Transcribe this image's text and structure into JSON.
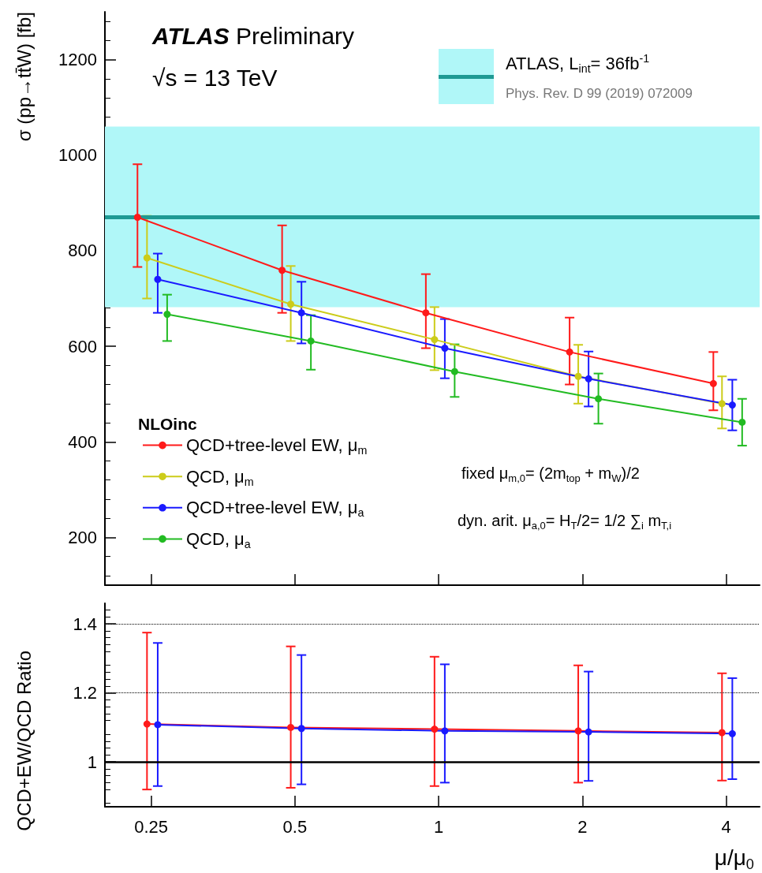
{
  "chart_data": [
    {
      "type": "line",
      "ylabel": "σ (pp→tt̄W) [fb]",
      "legend_title": "NLOinc",
      "log": "x",
      "xlim": [
        0.2,
        4.7
      ],
      "xticks": [
        0.25,
        0.5,
        1,
        2,
        4
      ],
      "ylim": [
        100,
        1300
      ],
      "yticks": [
        200,
        400,
        600,
        800,
        1000,
        1200
      ],
      "tick_labels": "y",
      "marker": "circle",
      "legend": "bottom left",
      "annotations": [
        "ATLAS Preliminary",
        "√s = 13 TeV",
        "ATLAS, L$_{int}$= 36fb$^{-1}$",
        "Phys. Rev. D 99 (2019) 072009",
        "fixed μ$_{m,0}$= (2m$_{top}$ + m$_{W}$)/2",
        "dyn. arit. μ$_{a,0}$= H$_{T}$/2= 1/2 ∑$_{i}$ m$_{T,i}$"
      ],
      "ref_lines": [
        {
          "axis": "y",
          "value": 870,
          "color": "#1f9a94",
          "line_style": "solid"
        }
      ],
      "bands": [
        {
          "axis": "y",
          "from": 682,
          "to": 1060,
          "color": "#b0f7f8"
        }
      ],
      "series": [
        {
          "name": "QCD+tree-level EW, μ$_{m}$",
          "color": "#ff1a1a",
          "x": [
            0.234,
            0.47,
            0.94,
            1.88,
            3.76
          ],
          "values": [
            870,
            759,
            670,
            588,
            522
          ],
          "errors": [
            [
              766,
              981
            ],
            [
              670,
              853
            ],
            [
              596,
              751
            ],
            [
              520,
              660
            ],
            [
              466,
              588
            ]
          ]
        },
        {
          "name": "QCD, μ$_{m}$",
          "color": "#cccc1a",
          "x": [
            0.245,
            0.49,
            0.98,
            1.96,
            3.92
          ],
          "values": [
            785,
            688,
            614,
            537,
            480
          ],
          "errors": [
            [
              700,
              873
            ],
            [
              611,
              768
            ],
            [
              550,
              682
            ],
            [
              480,
              603
            ],
            [
              428,
              537
            ]
          ]
        },
        {
          "name": "QCD+tree-level EW, μ$_{a}$",
          "color": "#1a1aff",
          "x": [
            0.258,
            0.516,
            1.03,
            2.06,
            4.12
          ],
          "values": [
            740,
            670,
            596,
            532,
            477
          ],
          "errors": [
            [
              670,
              794
            ],
            [
              606,
              735
            ],
            [
              533,
              657
            ],
            [
              474,
              589
            ],
            [
              424,
              530
            ]
          ]
        },
        {
          "name": "QCD, μ$_{a}$",
          "color": "#22bb22",
          "x": [
            0.27,
            0.54,
            1.08,
            2.16,
            4.32
          ],
          "values": [
            667,
            611,
            547,
            490,
            441
          ],
          "errors": [
            [
              611,
              708
            ],
            [
              551,
              665
            ],
            [
              494,
              604
            ],
            [
              438,
              543
            ],
            [
              392,
              490
            ]
          ]
        }
      ]
    },
    {
      "type": "line",
      "xlabel": "μ/μ$_{0}$",
      "ylabel": "QCD+EW/QCD Ratio",
      "log": "x",
      "xlim": [
        0.2,
        4.7
      ],
      "xticks": [
        0.25,
        0.5,
        1,
        2,
        4
      ],
      "ylim": [
        0.87,
        1.46
      ],
      "yticks": [
        1,
        1.2,
        1.4
      ],
      "marker": "circle",
      "ref_lines": [
        {
          "axis": "y",
          "value": 1,
          "color": "#000000",
          "line_style": "solid"
        },
        {
          "axis": "y",
          "value": 1.2,
          "color": "#000000",
          "line_style": "dotted"
        },
        {
          "axis": "y",
          "value": 1.4,
          "color": "#000000",
          "line_style": "dotted"
        }
      ],
      "series": [
        {
          "color": "#ff1a1a",
          "x": [
            0.245,
            0.49,
            0.98,
            1.96,
            3.92
          ],
          "values": [
            1.11,
            1.1,
            1.095,
            1.09,
            1.085
          ],
          "errors": [
            [
              0.92,
              1.375
            ],
            [
              0.925,
              1.335
            ],
            [
              0.93,
              1.305
            ],
            [
              0.94,
              1.28
            ],
            [
              0.946,
              1.257
            ]
          ]
        },
        {
          "color": "#1a1aff",
          "x": [
            0.258,
            0.516,
            1.03,
            2.06,
            4.12
          ],
          "values": [
            1.108,
            1.097,
            1.09,
            1.087,
            1.082
          ],
          "errors": [
            [
              0.93,
              1.345
            ],
            [
              0.935,
              1.31
            ],
            [
              0.94,
              1.283
            ],
            [
              0.945,
              1.262
            ],
            [
              0.95,
              1.243
            ]
          ]
        }
      ]
    }
  ]
}
